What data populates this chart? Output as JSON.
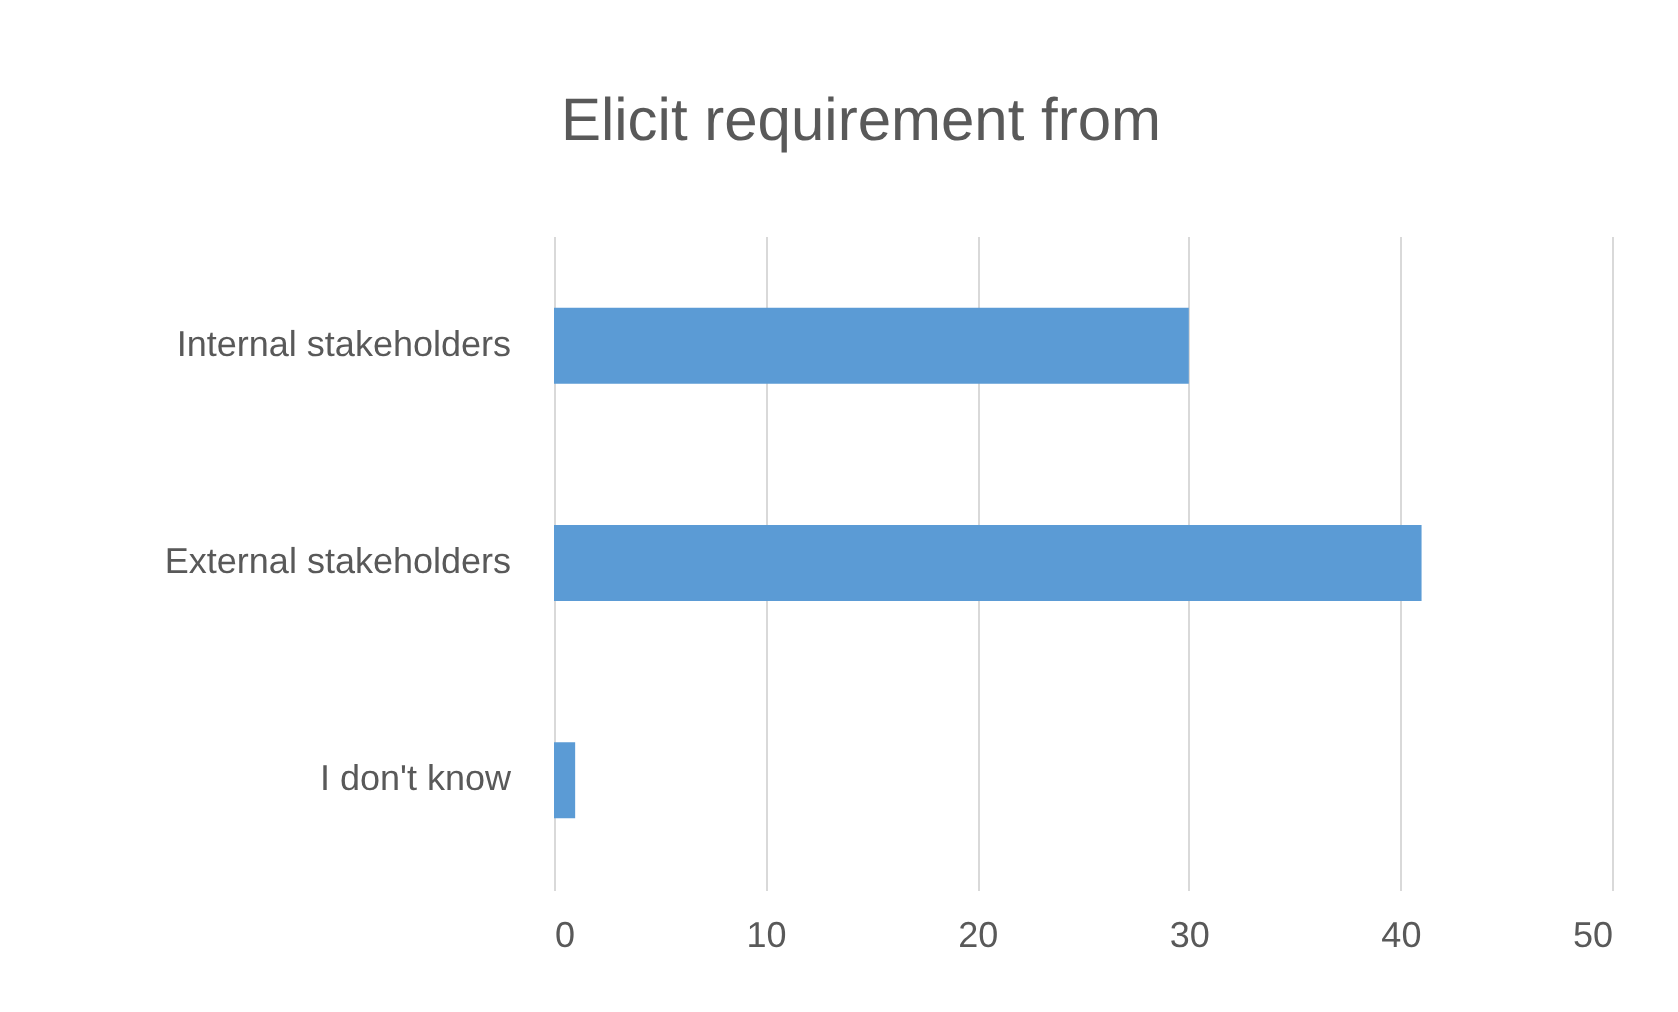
{
  "chart_data": {
    "type": "bar",
    "orientation": "horizontal",
    "title": "Elicit requirement from",
    "categories": [
      "Internal stakeholders",
      "External stakeholders",
      "I don't know"
    ],
    "values": [
      30,
      41,
      1
    ],
    "color": "#5b9bd5",
    "xlim": [
      0,
      50
    ],
    "xticks": [
      0,
      10,
      20,
      30,
      40,
      50
    ],
    "grid": "x"
  }
}
